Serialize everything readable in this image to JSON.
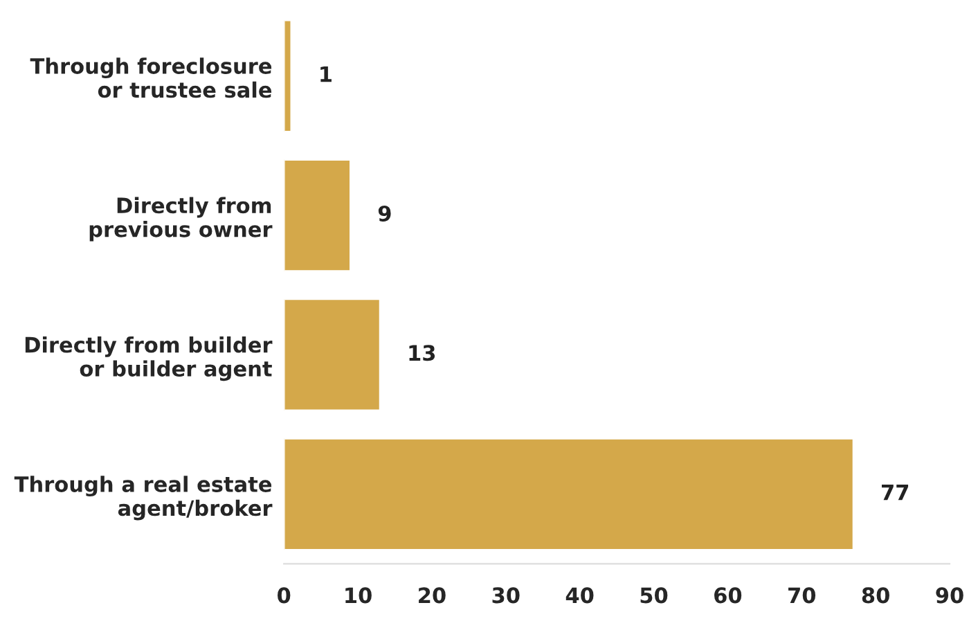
{
  "chart_data": {
    "type": "bar",
    "orientation": "horizontal",
    "categories": [
      "Through foreclosure\nor trustee sale",
      "Directly from\nprevious owner",
      "Directly from builder\nor builder agent",
      "Through a real estate\nagent/broker"
    ],
    "values": [
      1,
      9,
      13,
      77
    ],
    "color": "#d4a84a",
    "xlim": [
      0,
      90
    ],
    "xticks": [
      0,
      10,
      20,
      30,
      40,
      50,
      60,
      70,
      80,
      90
    ],
    "data_labels": true,
    "grid": false,
    "legend": false
  }
}
